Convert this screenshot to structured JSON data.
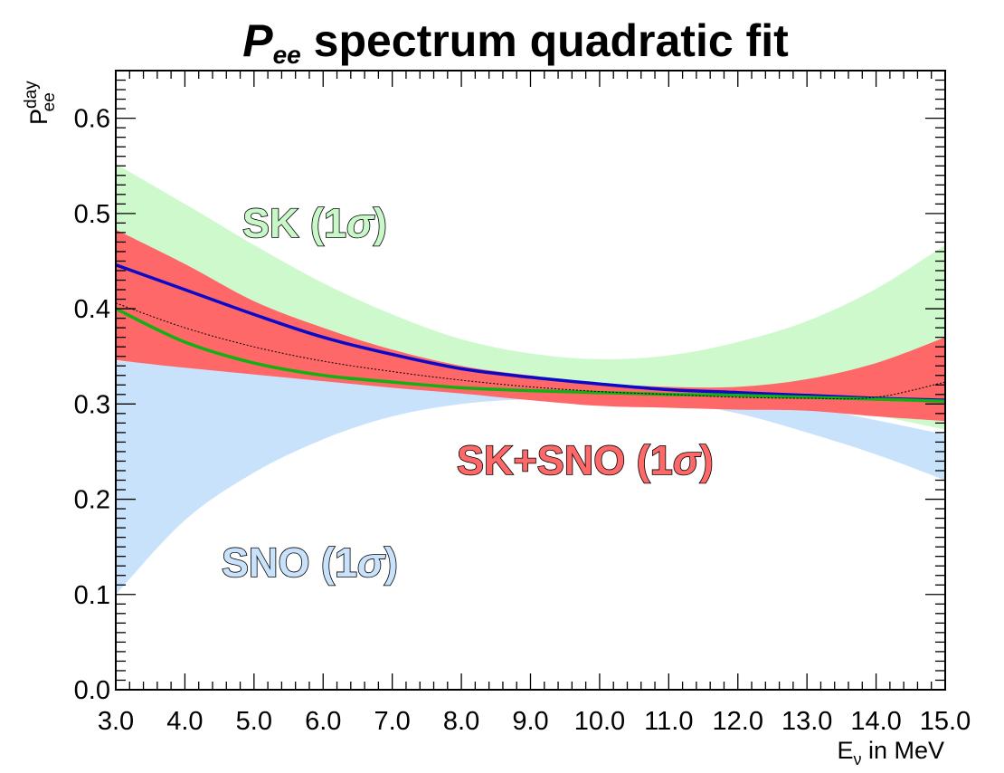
{
  "chart_data": {
    "type": "area",
    "title": {
      "symbol": "P",
      "subscript": "ee",
      "rest": " spectrum quadratic fit"
    },
    "xlabel": {
      "main": "E",
      "sub": "ν",
      "rest": " in MeV"
    },
    "ylabel": {
      "main": "P",
      "sup": "day",
      "sub": "ee"
    },
    "xlim": [
      3.0,
      15.0
    ],
    "ylim": [
      0.0,
      0.65
    ],
    "x_ticks": [
      "3.0",
      "4.0",
      "5.0",
      "6.0",
      "7.0",
      "8.0",
      "9.0",
      "10.0",
      "11.0",
      "12.0",
      "13.0",
      "14.0",
      "15.0"
    ],
    "y_ticks": [
      "0.0",
      "0.1",
      "0.2",
      "0.3",
      "0.4",
      "0.5",
      "0.6"
    ],
    "grid": false,
    "x": [
      3,
      4,
      5,
      6,
      7,
      8,
      9,
      10,
      11,
      12,
      13,
      14,
      15
    ],
    "bands": [
      {
        "name": "SNO (1σ)",
        "color": "#c8e2fb",
        "upper": [
          0.345,
          0.342,
          0.339,
          0.332,
          0.325,
          0.318,
          0.314,
          0.313,
          0.312,
          0.306,
          0.297,
          0.283,
          0.268
        ],
        "lower": [
          0.1,
          0.178,
          0.228,
          0.263,
          0.287,
          0.3,
          0.305,
          0.305,
          0.302,
          0.29,
          0.27,
          0.247,
          0.22
        ]
      },
      {
        "name": "SK (1σ)",
        "color": "#c9f8c8",
        "upper": [
          0.552,
          0.51,
          0.467,
          0.427,
          0.394,
          0.368,
          0.353,
          0.347,
          0.351,
          0.365,
          0.387,
          0.421,
          0.467
        ],
        "lower": [
          0.48,
          0.426,
          0.384,
          0.352,
          0.331,
          0.318,
          0.312,
          0.312,
          0.311,
          0.306,
          0.3,
          0.288,
          0.273
        ]
      },
      {
        "name": "SK+SNO (1σ)",
        "color": "#fe6868",
        "upper": [
          0.483,
          0.447,
          0.408,
          0.38,
          0.357,
          0.34,
          0.33,
          0.322,
          0.318,
          0.318,
          0.326,
          0.343,
          0.37
        ],
        "lower": [
          0.346,
          0.338,
          0.331,
          0.324,
          0.317,
          0.311,
          0.304,
          0.298,
          0.296,
          0.294,
          0.293,
          0.287,
          0.282
        ]
      }
    ],
    "lines": [
      {
        "color": "#0a0ac8",
        "values": [
          0.446,
          0.42,
          0.394,
          0.37,
          0.352,
          0.337,
          0.328,
          0.321,
          0.315,
          0.312,
          0.309,
          0.306,
          0.304
        ]
      },
      {
        "color": "#12b012",
        "values": [
          0.4,
          0.365,
          0.343,
          0.33,
          0.323,
          0.317,
          0.314,
          0.312,
          0.31,
          0.309,
          0.307,
          0.305,
          0.303
        ]
      },
      {
        "color": "#000000",
        "style": "dotted",
        "values": [
          0.406,
          0.38,
          0.36,
          0.345,
          0.334,
          0.325,
          0.318,
          0.313,
          0.31,
          0.307,
          0.306,
          0.307,
          0.323
        ]
      }
    ],
    "annotations": [
      {
        "text": "SK (1",
        "symbol": "σ",
        "close": ")",
        "color": "#c9f8c8",
        "x": 3.0,
        "y": 0.0
      },
      {
        "text": "SK+SNO (1",
        "symbol": "σ",
        "close": ")",
        "color": "#fe6868",
        "x": 0.0,
        "y": 0.0
      },
      {
        "text": "SNO (1",
        "symbol": "σ",
        "close": ")",
        "color": "#c8e2fb",
        "x": 0.0,
        "y": 0.0
      }
    ]
  }
}
